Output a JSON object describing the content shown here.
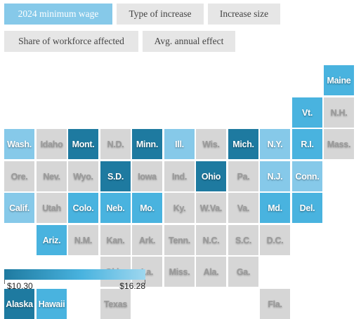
{
  "tabs": [
    {
      "label": "2024 minimum wage",
      "active": true
    },
    {
      "label": "Type of increase",
      "active": false
    },
    {
      "label": "Increase size",
      "active": false
    },
    {
      "label": "Share of workforce affected",
      "active": false
    },
    {
      "label": "Avg. annual effect",
      "active": false
    }
  ],
  "colors": {
    "base": "#d6d6d6",
    "dark": "#1e7aa0",
    "mid": "#49b3df",
    "light": "#86c9e9"
  },
  "states": [
    {
      "label": "Maine",
      "col": 10,
      "row": 0,
      "shade": "mid"
    },
    {
      "label": "Vt.",
      "col": 9,
      "row": 1,
      "shade": "mid"
    },
    {
      "label": "N.H.",
      "col": 10,
      "row": 1,
      "shade": "base"
    },
    {
      "label": "Wash.",
      "col": 0,
      "row": 2,
      "shade": "light"
    },
    {
      "label": "Idaho",
      "col": 1,
      "row": 2,
      "shade": "base"
    },
    {
      "label": "Mont.",
      "col": 2,
      "row": 2,
      "shade": "dark"
    },
    {
      "label": "N.D.",
      "col": 3,
      "row": 2,
      "shade": "base"
    },
    {
      "label": "Minn.",
      "col": 4,
      "row": 2,
      "shade": "dark"
    },
    {
      "label": "Ill.",
      "col": 5,
      "row": 2,
      "shade": "light"
    },
    {
      "label": "Wis.",
      "col": 6,
      "row": 2,
      "shade": "base"
    },
    {
      "label": "Mich.",
      "col": 7,
      "row": 2,
      "shade": "dark"
    },
    {
      "label": "N.Y.",
      "col": 8,
      "row": 2,
      "shade": "light"
    },
    {
      "label": "R.I.",
      "col": 9,
      "row": 2,
      "shade": "mid"
    },
    {
      "label": "Mass.",
      "col": 10,
      "row": 2,
      "shade": "base"
    },
    {
      "label": "Ore.",
      "col": 0,
      "row": 3,
      "shade": "base"
    },
    {
      "label": "Nev.",
      "col": 1,
      "row": 3,
      "shade": "base"
    },
    {
      "label": "Wyo.",
      "col": 2,
      "row": 3,
      "shade": "base"
    },
    {
      "label": "S.D.",
      "col": 3,
      "row": 3,
      "shade": "dark"
    },
    {
      "label": "Iowa",
      "col": 4,
      "row": 3,
      "shade": "base"
    },
    {
      "label": "Ind.",
      "col": 5,
      "row": 3,
      "shade": "base"
    },
    {
      "label": "Ohio",
      "col": 6,
      "row": 3,
      "shade": "dark"
    },
    {
      "label": "Pa.",
      "col": 7,
      "row": 3,
      "shade": "base"
    },
    {
      "label": "N.J.",
      "col": 8,
      "row": 3,
      "shade": "light"
    },
    {
      "label": "Conn.",
      "col": 9,
      "row": 3,
      "shade": "light"
    },
    {
      "label": "Calif.",
      "col": 0,
      "row": 4,
      "shade": "light"
    },
    {
      "label": "Utah",
      "col": 1,
      "row": 4,
      "shade": "base"
    },
    {
      "label": "Colo.",
      "col": 2,
      "row": 4,
      "shade": "mid"
    },
    {
      "label": "Neb.",
      "col": 3,
      "row": 4,
      "shade": "mid"
    },
    {
      "label": "Mo.",
      "col": 4,
      "row": 4,
      "shade": "mid"
    },
    {
      "label": "Ky.",
      "col": 5,
      "row": 4,
      "shade": "base"
    },
    {
      "label": "W.Va.",
      "col": 6,
      "row": 4,
      "shade": "base"
    },
    {
      "label": "Va.",
      "col": 7,
      "row": 4,
      "shade": "base"
    },
    {
      "label": "Md.",
      "col": 8,
      "row": 4,
      "shade": "mid"
    },
    {
      "label": "Del.",
      "col": 9,
      "row": 4,
      "shade": "mid"
    },
    {
      "label": "Ariz.",
      "col": 1,
      "row": 5,
      "shade": "mid"
    },
    {
      "label": "N.M.",
      "col": 2,
      "row": 5,
      "shade": "base"
    },
    {
      "label": "Kan.",
      "col": 3,
      "row": 5,
      "shade": "base"
    },
    {
      "label": "Ark.",
      "col": 4,
      "row": 5,
      "shade": "base"
    },
    {
      "label": "Tenn.",
      "col": 5,
      "row": 5,
      "shade": "base"
    },
    {
      "label": "N.C.",
      "col": 6,
      "row": 5,
      "shade": "base"
    },
    {
      "label": "S.C.",
      "col": 7,
      "row": 5,
      "shade": "base"
    },
    {
      "label": "D.C.",
      "col": 8,
      "row": 5,
      "shade": "base"
    },
    {
      "label": "Okla.",
      "col": 3,
      "row": 6,
      "shade": "base"
    },
    {
      "label": "La.",
      "col": 4,
      "row": 6,
      "shade": "base"
    },
    {
      "label": "Miss.",
      "col": 5,
      "row": 6,
      "shade": "base"
    },
    {
      "label": "Ala.",
      "col": 6,
      "row": 6,
      "shade": "base"
    },
    {
      "label": "Ga.",
      "col": 7,
      "row": 6,
      "shade": "base"
    },
    {
      "label": "Alaska",
      "col": 0,
      "row": 7,
      "shade": "dark"
    },
    {
      "label": "Hawaii",
      "col": 1,
      "row": 7,
      "shade": "mid"
    },
    {
      "label": "Texas",
      "col": 3,
      "row": 7,
      "shade": "base"
    },
    {
      "label": "Fla.",
      "col": 8,
      "row": 7,
      "shade": "base"
    }
  ],
  "legend": {
    "min_label": "$10.30",
    "max_label": "$16.28"
  }
}
